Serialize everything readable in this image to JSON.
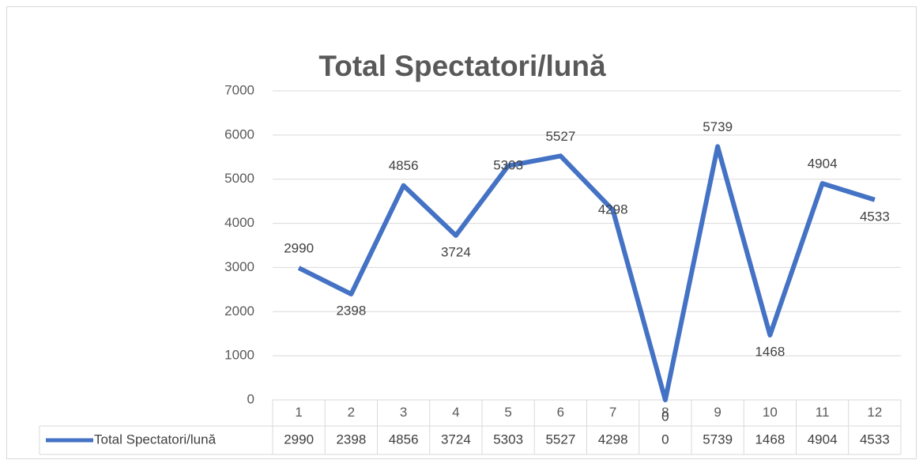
{
  "chart_data": {
    "type": "line",
    "title": "Total Spectatori/lună",
    "categories": [
      "1",
      "2",
      "3",
      "4",
      "5",
      "6",
      "7",
      "8",
      "9",
      "10",
      "11",
      "12"
    ],
    "series": [
      {
        "name": "Total Spectatori/lună",
        "color": "#4472c4",
        "values": [
          2990,
          2398,
          4856,
          3724,
          5303,
          5527,
          4298,
          0,
          5739,
          1468,
          4904,
          4533
        ]
      }
    ],
    "ylim": [
      0,
      7000
    ],
    "yticks": [
      0,
      1000,
      2000,
      3000,
      4000,
      5000,
      6000,
      7000
    ],
    "grid": true
  }
}
